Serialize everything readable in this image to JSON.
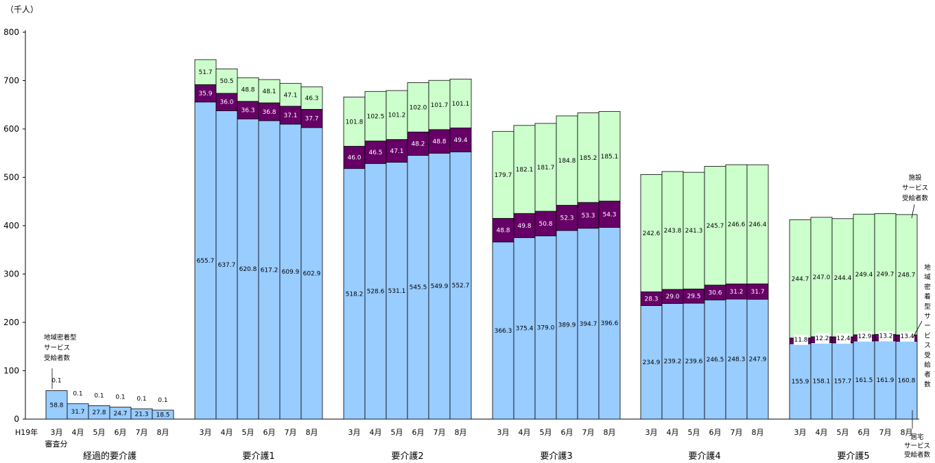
{
  "chart_data": {
    "type": "bar",
    "stacked": true,
    "unit_label": "（千人）",
    "ylim": [
      0,
      800
    ],
    "yticks": [
      0,
      100,
      200,
      300,
      400,
      500,
      600,
      700,
      800
    ],
    "grid": false,
    "colors": {
      "home": "#99ccff",
      "community": "#660066",
      "facility": "#ccffcc",
      "outline": "#000000"
    },
    "year_label": "H19年",
    "sub_label": "審査分",
    "groups": [
      {
        "name": "経過的要介護",
        "months": [
          "3月",
          "4月",
          "5月",
          "6月",
          "7月",
          "8月"
        ],
        "home": [
          58.8,
          31.7,
          27.8,
          24.7,
          21.3,
          18.5
        ],
        "community": [
          0.1,
          0.1,
          0.1,
          0.1,
          0.1,
          0.1
        ],
        "facility": [
          0,
          0,
          0,
          0,
          0,
          0
        ]
      },
      {
        "name": "要介護1",
        "months": [
          "3月",
          "4月",
          "5月",
          "6月",
          "7月",
          "8月"
        ],
        "home": [
          655.7,
          637.7,
          620.8,
          617.2,
          609.9,
          602.9
        ],
        "community": [
          35.9,
          36.0,
          36.3,
          36.8,
          37.1,
          37.7
        ],
        "facility": [
          51.7,
          50.5,
          48.8,
          48.1,
          47.1,
          46.3
        ]
      },
      {
        "name": "要介護2",
        "months": [
          "3月",
          "4月",
          "5月",
          "6月",
          "7月",
          "8月"
        ],
        "home": [
          518.2,
          528.6,
          531.1,
          545.5,
          549.9,
          552.7
        ],
        "community": [
          46.0,
          46.5,
          47.1,
          48.2,
          48.8,
          49.4
        ],
        "facility": [
          101.8,
          102.5,
          101.2,
          102.0,
          101.7,
          101.1
        ]
      },
      {
        "name": "要介護3",
        "months": [
          "3月",
          "4月",
          "5月",
          "6月",
          "7月",
          "8月"
        ],
        "home": [
          366.3,
          375.4,
          379.0,
          389.9,
          394.7,
          396.6
        ],
        "community": [
          48.8,
          49.8,
          50.8,
          52.3,
          53.3,
          54.3
        ],
        "facility": [
          179.7,
          182.1,
          181.7,
          184.8,
          185.2,
          185.1
        ]
      },
      {
        "name": "要介護4",
        "months": [
          "3月",
          "4月",
          "5月",
          "6月",
          "7月",
          "8月"
        ],
        "home": [
          234.9,
          239.2,
          239.6,
          246.5,
          248.3,
          247.9
        ],
        "community": [
          28.3,
          29.0,
          29.5,
          30.6,
          31.2,
          31.7
        ],
        "facility": [
          242.6,
          243.8,
          241.3,
          245.7,
          246.6,
          246.4
        ]
      },
      {
        "name": "要介護5",
        "months": [
          "3月",
          "4月",
          "5月",
          "6月",
          "7月",
          "8月"
        ],
        "home": [
          155.9,
          158.1,
          157.7,
          161.5,
          161.9,
          160.8
        ],
        "community": [
          11.8,
          12.2,
          12.4,
          12.9,
          13.2,
          13.4
        ],
        "facility": [
          244.7,
          247.0,
          244.4,
          249.4,
          249.7,
          248.7
        ]
      }
    ],
    "annotations": {
      "community_left": [
        "地域密着型",
        "サービス",
        "受給者数"
      ],
      "facility_right": [
        "施設",
        "サービス",
        "受給者数"
      ],
      "community_right": [
        "地",
        "域",
        "密",
        "着",
        "型",
        "サ",
        "ー",
        "ビ",
        "ス",
        "受",
        "給",
        "者",
        "数"
      ],
      "home_right": [
        "居宅",
        "サービス",
        "受給者数"
      ]
    }
  }
}
